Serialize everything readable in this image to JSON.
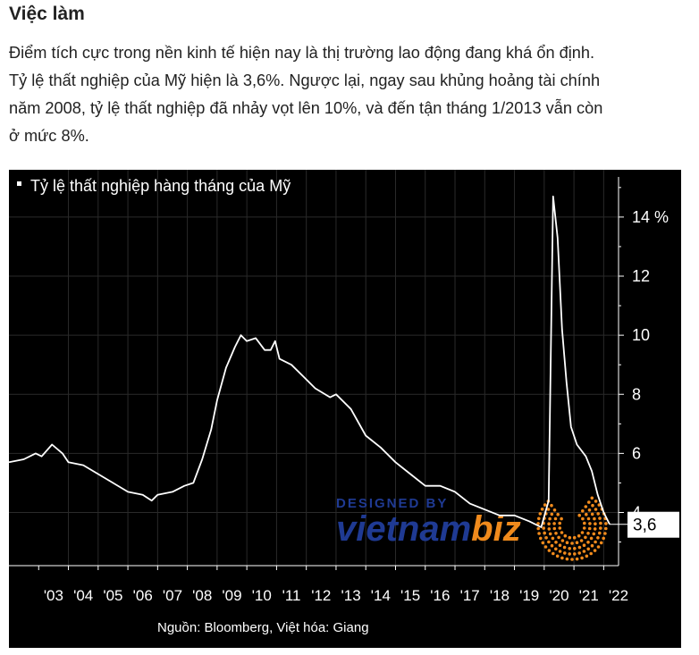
{
  "article": {
    "heading": "Việc làm",
    "paragraph_lines": [
      "Điểm tích cực trong nền kinh tế hiện nay là thị trường lao động đang khá ổn định.",
      "Tỷ lệ thất nghiệp của Mỹ hiện là 3,6%. Ngược lại, ngay sau khủng hoảng tài chính",
      "năm 2008, tỷ lệ thất nghiệp đã nhảy vọt lên 10%, và đến tận tháng 1/2013 vẫn còn",
      "ở mức 8%."
    ]
  },
  "colors": {
    "chart_bg": "#000000",
    "line": "#ffffff",
    "grid": "#2a2a2a",
    "watermark_blue": "#1f3a93",
    "watermark_orange": "#f08a1c"
  },
  "watermark": {
    "top": "DESIGNED BY",
    "brand_a": "vietnam",
    "brand_b": "biz"
  },
  "chart_data": {
    "type": "line",
    "title": "Tỷ lệ thất nghiệp hàng tháng của Mỹ",
    "source": "Nguồn: Bloomberg, Việt hóa: Giang",
    "x_ticks": [
      "'03",
      "'04",
      "'05",
      "'06",
      "'07",
      "'08",
      "'09",
      "'10",
      "'11",
      "'12",
      "'13",
      "'14",
      "'15",
      "'16",
      "'17",
      "'18",
      "'19",
      "'20",
      "'21",
      "'22"
    ],
    "y_ticks": [
      "4",
      "6",
      "8",
      "10",
      "12",
      "14 %"
    ],
    "y_tick_values": [
      4,
      6,
      8,
      10,
      12,
      14
    ],
    "ylim": [
      2.2,
      15.6
    ],
    "xlim": [
      2002.0,
      2022.5
    ],
    "last_value_label": "3,6",
    "last_value": 3.6,
    "series": [
      {
        "points": [
          [
            2002.0,
            5.7
          ],
          [
            2002.5,
            5.8
          ],
          [
            2002.9,
            6.0
          ],
          [
            2003.1,
            5.9
          ],
          [
            2003.45,
            6.3
          ],
          [
            2003.8,
            6.0
          ],
          [
            2004.0,
            5.7
          ],
          [
            2004.5,
            5.6
          ],
          [
            2005.0,
            5.3
          ],
          [
            2005.5,
            5.0
          ],
          [
            2006.0,
            4.7
          ],
          [
            2006.5,
            4.6
          ],
          [
            2006.8,
            4.4
          ],
          [
            2007.0,
            4.6
          ],
          [
            2007.5,
            4.7
          ],
          [
            2007.9,
            4.9
          ],
          [
            2008.2,
            5.0
          ],
          [
            2008.5,
            5.8
          ],
          [
            2008.8,
            6.8
          ],
          [
            2009.0,
            7.8
          ],
          [
            2009.3,
            8.9
          ],
          [
            2009.6,
            9.6
          ],
          [
            2009.8,
            10.0
          ],
          [
            2010.0,
            9.8
          ],
          [
            2010.3,
            9.9
          ],
          [
            2010.6,
            9.5
          ],
          [
            2010.8,
            9.5
          ],
          [
            2010.95,
            9.8
          ],
          [
            2011.1,
            9.2
          ],
          [
            2011.5,
            9.0
          ],
          [
            2011.9,
            8.6
          ],
          [
            2012.3,
            8.2
          ],
          [
            2012.8,
            7.9
          ],
          [
            2013.0,
            8.0
          ],
          [
            2013.5,
            7.5
          ],
          [
            2014.0,
            6.6
          ],
          [
            2014.5,
            6.2
          ],
          [
            2015.0,
            5.7
          ],
          [
            2015.5,
            5.3
          ],
          [
            2016.0,
            4.9
          ],
          [
            2016.5,
            4.9
          ],
          [
            2017.0,
            4.7
          ],
          [
            2017.5,
            4.3
          ],
          [
            2018.0,
            4.1
          ],
          [
            2018.5,
            3.9
          ],
          [
            2019.0,
            3.9
          ],
          [
            2019.5,
            3.7
          ],
          [
            2019.9,
            3.5
          ],
          [
            2020.15,
            4.4
          ],
          [
            2020.3,
            14.7
          ],
          [
            2020.45,
            13.3
          ],
          [
            2020.6,
            10.2
          ],
          [
            2020.75,
            8.4
          ],
          [
            2020.9,
            6.9
          ],
          [
            2021.1,
            6.3
          ],
          [
            2021.4,
            5.9
          ],
          [
            2021.6,
            5.4
          ],
          [
            2021.8,
            4.6
          ],
          [
            2022.0,
            4.0
          ],
          [
            2022.2,
            3.6
          ]
        ]
      }
    ],
    "grid": true
  }
}
